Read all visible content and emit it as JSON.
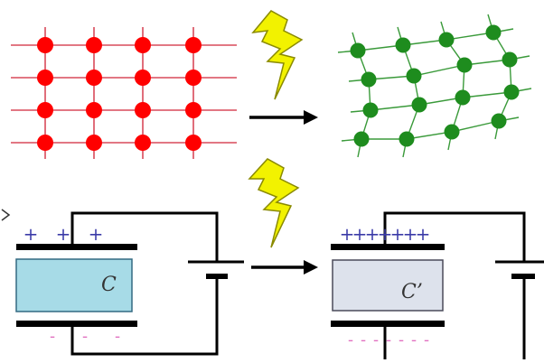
{
  "lattice_before": {
    "rows": 4,
    "cols": 4,
    "node_color": "#ff0000",
    "line_color": "#d94a5a"
  },
  "lattice_after": {
    "node_color": "#1e8c1e",
    "line_color": "#3a9a3a"
  },
  "bolt_color": "#f2f200",
  "arrow_color": "#000000",
  "capacitor_before": {
    "label": "C",
    "dielectric_color": "#a7dbe7",
    "plus_signs": [
      "+",
      "+",
      "+"
    ],
    "minus_signs": [
      "-",
      "-",
      "-"
    ]
  },
  "capacitor_after": {
    "label": "C’",
    "dielectric_color": "#dde2ec",
    "plus_signs": [
      "+",
      "+",
      "+",
      "+",
      "+",
      "+",
      "+"
    ],
    "minus_signs": [
      "-",
      "-",
      "-",
      "-",
      "-",
      "-",
      "-"
    ]
  },
  "charge_colors": {
    "plus": "#3b3ba8",
    "minus": "#e070c0"
  }
}
